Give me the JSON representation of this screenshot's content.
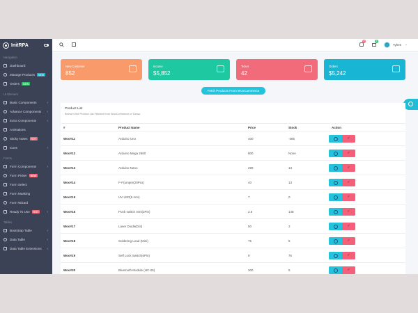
{
  "brand": {
    "name": "InitRPA"
  },
  "colors": {
    "sidebar": "#3b4255",
    "accent": "#25c2dc",
    "danger": "#f4607a"
  },
  "sidebar": {
    "sections": [
      {
        "title": "Navigation",
        "items": [
          {
            "label": "Dashboard",
            "icon": "dashboard-icon"
          },
          {
            "label": "Manage Products",
            "badge": "NEW",
            "badge_type": "new",
            "icon": "box-icon"
          },
          {
            "label": "Orders",
            "badge": "NEW",
            "badge_type": "green",
            "icon": "orders-icon"
          }
        ]
      },
      {
        "title": "UI Element",
        "items": [
          {
            "label": "Basic Components",
            "chevron": true,
            "icon": "components-icon"
          },
          {
            "label": "Advance Components",
            "chevron": true,
            "icon": "advance-icon"
          },
          {
            "label": "Extra Components",
            "chevron": true,
            "icon": "extra-icon"
          },
          {
            "label": "Animations",
            "icon": "animation-icon"
          },
          {
            "label": "Sticky Notes",
            "badge": "HOT",
            "badge_type": "hot",
            "icon": "notes-icon"
          },
          {
            "label": "Icons",
            "chevron": true,
            "icon": "icons-icon"
          }
        ]
      },
      {
        "title": "Forms",
        "items": [
          {
            "label": "Form Components",
            "chevron": true,
            "icon": "form-icon"
          },
          {
            "label": "Form Picker",
            "badge": "NEW",
            "badge_type": "hot",
            "icon": "picker-icon"
          },
          {
            "label": "Form Select",
            "icon": "select-icon"
          },
          {
            "label": "Form Masking",
            "icon": "masking-icon"
          },
          {
            "label": "Form Wizard",
            "icon": "wizard-icon"
          },
          {
            "label": "Ready To Use",
            "badge": "HOT",
            "badge_type": "hot",
            "chevron": true,
            "icon": "ready-icon"
          }
        ]
      },
      {
        "title": "Tables",
        "items": [
          {
            "label": "Bootstrap Table",
            "chevron": true,
            "icon": "table-icon"
          },
          {
            "label": "Data Table",
            "chevron": true,
            "icon": "datatable-icon"
          },
          {
            "label": "Data Table Extensions",
            "chevron": true,
            "icon": "extension-icon"
          }
        ]
      }
    ]
  },
  "header": {
    "notification_count": "9",
    "message_count": "5",
    "user_name": "Tyhen"
  },
  "cards": [
    {
      "label": "New Customer",
      "value": "852",
      "color": "#f99a6a",
      "icon": "user-icon"
    },
    {
      "label": "Income",
      "value": "$5,852",
      "color": "#1ec8a0",
      "icon": "card-icon"
    },
    {
      "label": "Ticket",
      "value": "42",
      "color": "#f26b7a",
      "icon": "book-icon"
    },
    {
      "label": "Orders",
      "value": "$5,242",
      "color": "#18b6d4",
      "icon": "cart-icon"
    }
  ],
  "fetch_button": "Fetch Products From WooCommerce",
  "table": {
    "title": "Product List",
    "subtitle": "Below is the Product List Fetched from WooCommerce or Daraz.",
    "columns": [
      "#",
      "Product Name",
      "Price",
      "Stock",
      "Action"
    ],
    "rows": [
      [
        "Woo#11",
        "Arduino Uno",
        "400",
        "-365"
      ],
      [
        "Woo#12",
        "Arduino Mega 2560",
        "800",
        "None"
      ],
      [
        "Woo#13",
        "Arduino Nano",
        "299",
        "13"
      ],
      [
        "Woo#14",
        "F-F(umper(20Pcs)",
        "40",
        "13"
      ],
      [
        "Woo#15",
        "UV LED(5 mm)",
        "7",
        "0"
      ],
      [
        "Woo#16",
        "Push switch mini(2Pin)",
        "2.5",
        "148"
      ],
      [
        "Woo#17",
        "Laser Diode(Dot)",
        "50",
        "2"
      ],
      [
        "Woo#18",
        "Soldering Lead (Mini)",
        "75",
        "5"
      ],
      [
        "Woo#19",
        "Self Lock Switch(6Pin)",
        "9",
        "76"
      ],
      [
        "Woo#20",
        "Bluetooth Module (HC-05)",
        "300",
        "5"
      ]
    ]
  }
}
